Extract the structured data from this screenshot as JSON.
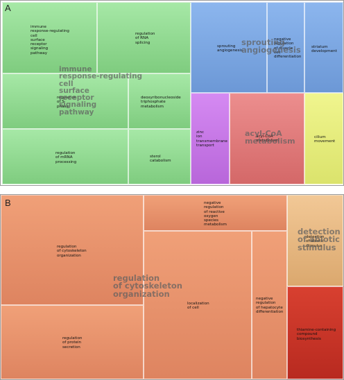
{
  "chart_data": [
    {
      "type": "treemap",
      "panel": "A",
      "groups": [
        {
          "name": "immune response-regulating cell surface receptor signaling pathway",
          "color": "#8fd88f",
          "terms": [
            "immune response-regulating cell surface receptor signaling pathway",
            "regulation of RNA splicing",
            "regulation of S phase",
            "deoxyribonucleoside triphosphate metabolism",
            "regulation of mRNA processing",
            "sterol catabolism"
          ]
        },
        {
          "name": "sprouting angiogenesis",
          "color": "#7aa6e0",
          "terms": [
            "sprouting angiogenesis",
            "negative regulation of muscle cell differentiation",
            "striatum development"
          ]
        },
        {
          "name": "zinc ion transmembrane transport",
          "color": "#c47ae6",
          "terms": [
            "zinc ion transmembrane transport"
          ]
        },
        {
          "name": "acyl-CoA metabolism",
          "color": "#e07a7a",
          "terms": [
            "acyl-CoA metabolism"
          ]
        },
        {
          "name": "cilium movement",
          "color": "#e6ef7a",
          "terms": [
            "cilium movement"
          ]
        }
      ]
    },
    {
      "type": "treemap",
      "panel": "B",
      "groups": [
        {
          "name": "regulation of cytoskeleton organization",
          "color": "#e8906a",
          "terms": [
            "regulation of cytoskeleton organization",
            "regulation of protein secretion",
            "negative regulation of reactive oxygen species metabolism",
            "localization of cell",
            "negative regulation of hepatocyte differentiation"
          ]
        },
        {
          "name": "detection of abiotic stimulus",
          "color": "#e8b27a",
          "terms": [
            "detection of abiotic stimulus"
          ]
        },
        {
          "name": "thiamine-containing compound biosynthesis",
          "color": "#c8382a",
          "terms": [
            "thiamine-containing compound biosynthesis"
          ]
        }
      ]
    }
  ],
  "panels": {
    "a_letter": "A",
    "b_letter": "B"
  },
  "a_labels": {
    "immune": "immune\nresponse-regulating\ncell\nsurface\nreceptor\nsignaling\npathway",
    "rna_splicing": "regulation\nof RNA\nsplicing",
    "s_phase": "regulation\nof S\nphase",
    "deoxy": "deoxyribonucleoside\ntriphosphate\nmetabolism",
    "mrna": "regulation\nof mRNA\nprocessing",
    "sterol": "sterol\ncatabolism",
    "sprouting": "sprouting\nangiogenesis",
    "neg_muscle": "negative\nregulation\nof muscle\ncell\ndifferentiation",
    "striatum": "striatum\ndevelopment",
    "zinc": "zinc\nion\ntransmembrane\ntransport",
    "acyl": "acyl-CoA\nmetabolism",
    "cilium": "cilium\nmovement",
    "group_immune": "immune\nresponse-regulating\ncell\nsurface\nreceptor\nsignaling\npathway",
    "group_sprouting": "sprouting\nangiogenesis",
    "group_acyl": "acyl-CoA\nmetabolism"
  },
  "b_labels": {
    "cytoskeleton": "regulation\nof cytoskeleton\norganization",
    "protein_secretion": "regulation\nof protein\nsecretion",
    "ros": "negative\nregulation\nof reactive\noxygen\nspecies\nmetabolism",
    "localization": "localization\nof cell",
    "hepatocyte": "negative\nregulation\nof hepatocyte\ndifferentiation",
    "abiotic": "detection\nof abiotic\nstimulus",
    "thiamine": "thiamine-containing\ncompound\nbiosynthesis",
    "group_cytoskeleton": "regulation\nof cytoskeleton\norganization",
    "group_abiotic": "detection\nof abiotic\nstimulus"
  }
}
